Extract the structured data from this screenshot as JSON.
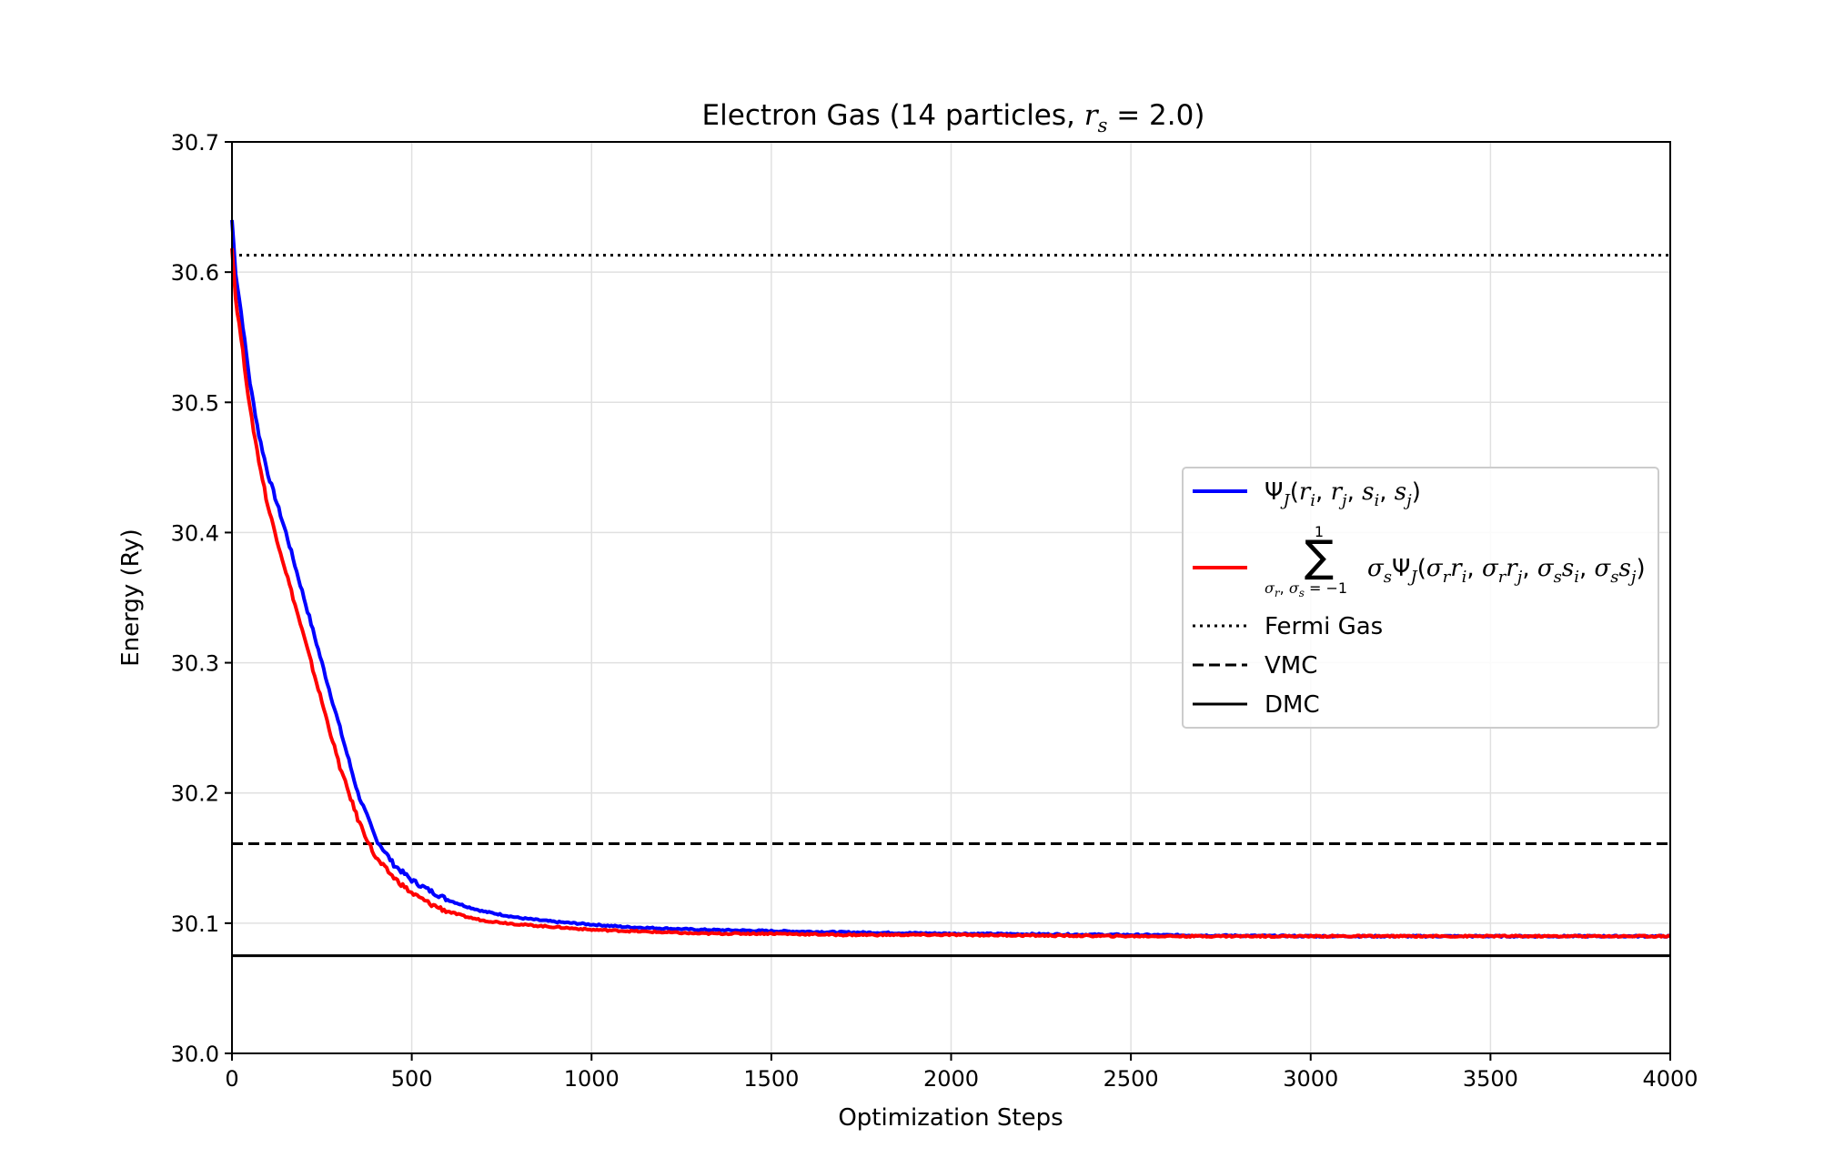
{
  "chart_data": {
    "type": "line",
    "title_main": "Electron Gas (14 particles, ",
    "title_math": "r",
    "title_sub": "s",
    "title_tail": " = 2.0)",
    "xlabel": "Optimization Steps",
    "ylabel": "Energy (Ry)",
    "xlim": [
      0,
      4000
    ],
    "ylim": [
      30.0,
      30.7
    ],
    "xticks": [
      "0",
      "500",
      "1000",
      "1500",
      "2000",
      "2500",
      "3000",
      "3500",
      "4000"
    ],
    "yticks": [
      "30.0",
      "30.1",
      "30.2",
      "30.3",
      "30.4",
      "30.5",
      "30.6",
      "30.7"
    ],
    "grid": true,
    "legend_position": "center-right",
    "series": [
      {
        "key": "psi_j",
        "color": "#0000ff",
        "x": [
          0,
          10,
          25,
          50,
          75,
          100,
          150,
          200,
          250,
          300,
          350,
          400,
          450,
          500,
          550,
          600,
          650,
          700,
          800,
          900,
          1000,
          1100,
          1200,
          1300,
          1500,
          1700,
          2000,
          2500,
          3000,
          3500,
          4000
        ],
        "y": [
          30.64,
          30.6,
          30.57,
          30.515,
          30.475,
          30.445,
          30.4,
          30.35,
          30.3,
          30.25,
          30.2,
          30.165,
          30.145,
          30.133,
          30.125,
          30.118,
          30.113,
          30.109,
          30.104,
          30.101,
          30.099,
          30.097,
          30.096,
          30.095,
          30.094,
          30.093,
          30.092,
          30.091,
          30.09,
          30.09,
          30.09
        ]
      },
      {
        "key": "sym_sum",
        "color": "#ff0000",
        "x": [
          0,
          10,
          25,
          50,
          75,
          100,
          150,
          200,
          250,
          300,
          350,
          400,
          450,
          500,
          550,
          600,
          650,
          700,
          800,
          900,
          1000,
          1100,
          1200,
          1300,
          1500,
          1700,
          2000,
          2500,
          3000,
          3500,
          4000
        ],
        "y": [
          30.62,
          30.58,
          30.55,
          30.495,
          30.455,
          30.42,
          30.37,
          30.32,
          30.27,
          30.22,
          30.18,
          30.15,
          30.135,
          30.123,
          30.115,
          30.109,
          30.105,
          30.102,
          30.099,
          30.097,
          30.095,
          30.094,
          30.093,
          30.092,
          30.092,
          30.091,
          30.091,
          30.09,
          30.09,
          30.09,
          30.09
        ]
      }
    ],
    "reference_lines": [
      {
        "key": "fermi",
        "name": "Fermi Gas",
        "y": 30.613,
        "style": "dotted",
        "color": "#000000"
      },
      {
        "key": "vmc",
        "name": "VMC",
        "y": 30.161,
        "style": "dashed",
        "color": "#000000"
      },
      {
        "key": "dmc",
        "name": "DMC",
        "y": 30.075,
        "style": "solid",
        "color": "#000000"
      }
    ],
    "legend": {
      "psi_j": {
        "psi": "Ψ",
        "sub_j": "J",
        "args_open": "(",
        "r": "r",
        "i": "i",
        "j": "j",
        "comma": ", ",
        "s": "s",
        "args_close": ")",
        "vec": "→"
      },
      "sym_sum": {
        "sum_sym": "∑",
        "upper": "1",
        "lower": "σ",
        "lower_r": "r",
        "lower_s": "s",
        "lower_eq": " = −1",
        "sigma": "σ",
        "psi": "Ψ",
        "sub_j": "J"
      }
    }
  }
}
